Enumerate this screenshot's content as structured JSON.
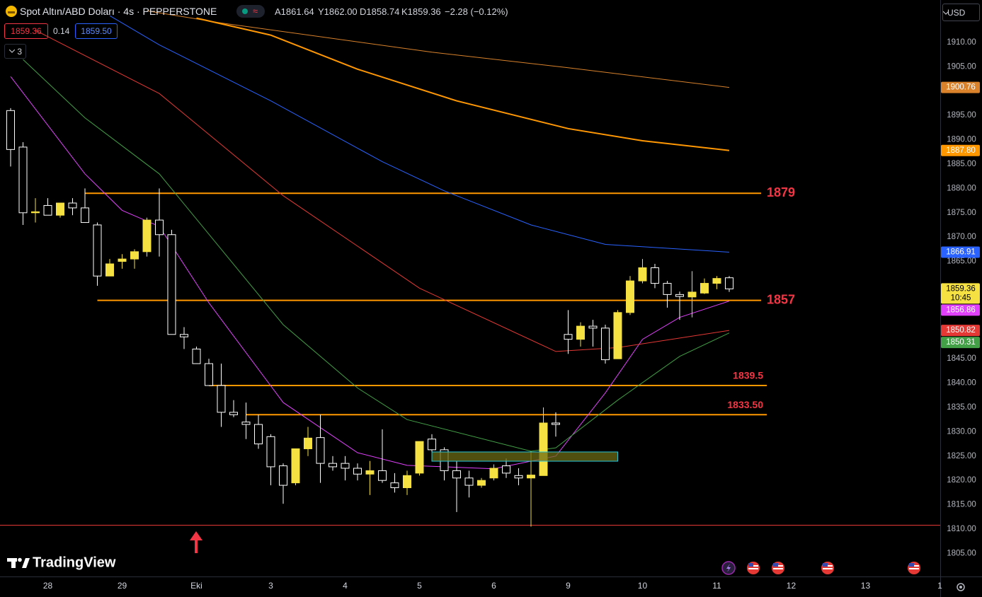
{
  "header": {
    "symbol": "Spot Altın/ABD Doları · 4s · PEPPERSTONE",
    "ohlc": [
      "A1861.64",
      "Y1862.00",
      "D1858.74",
      "K1859.36"
    ],
    "change": "−2.28 (−0.12%)",
    "bid": "1859.36",
    "spread": "0.14",
    "ask": "1859.50",
    "indicators_count": "3",
    "currency": "USD",
    "countdown": "10:45",
    "brand": "TradingView"
  },
  "chart_data": {
    "type": "candlestick",
    "up_color": "#f5e142",
    "down_color": "#ffffff",
    "open": [
      1896,
      1888.5,
      1875,
      1876.5,
      1874.5,
      1877,
      1876,
      1872.5,
      1862,
      1865,
      1865.5,
      1867,
      1873.5,
      1870.5,
      1850,
      1847,
      1844,
      1839.5,
      1834,
      1832,
      1831.5,
      1829,
      1823,
      1819.5,
      1826.5,
      1828.8,
      1823.5,
      1823.5,
      1822.5,
      1821.3,
      1822,
      1819.5,
      1818.5,
      1821.5,
      1828.5,
      1826.3,
      1822,
      1820.5,
      1819,
      1820.5,
      1823,
      1821,
      1820.5,
      1821,
      1831.8,
      1850,
      1849,
      1851.7,
      1851.3,
      1845,
      1854.5,
      1861,
      1863.7,
      1860.5,
      1858.2,
      1857.7,
      1858.5,
      1860.5,
      1861.64
    ],
    "high": [
      1896.5,
      1889.5,
      1878,
      1878,
      1877,
      1878,
      1880,
      1873,
      1865.5,
      1866.5,
      1867.5,
      1874,
      1880,
      1871.5,
      1851.5,
      1847.5,
      1845,
      1844,
      1836.5,
      1836,
      1833.5,
      1829.5,
      1823.5,
      1826.5,
      1831,
      1833.5,
      1825,
      1825,
      1823.5,
      1824,
      1830.5,
      1821.5,
      1822,
      1828,
      1829.5,
      1826.8,
      1824,
      1822,
      1820.5,
      1823.3,
      1824.5,
      1822.5,
      1826,
      1835,
      1834,
      1855,
      1852.5,
      1853,
      1852,
      1855,
      1862,
      1865.5,
      1864.5,
      1861,
      1858.8,
      1863,
      1861.5,
      1862,
      1862
    ],
    "low": [
      1884.5,
      1872.5,
      1873,
      1874.5,
      1874,
      1874.5,
      1873,
      1860,
      1862,
      1863.5,
      1863.5,
      1866,
      1866,
      1850,
      1847,
      1844,
      1839.5,
      1831,
      1833,
      1828.5,
      1826.5,
      1819,
      1815.2,
      1819,
      1825,
      1819.5,
      1822,
      1820,
      1820,
      1817,
      1819.5,
      1817.5,
      1817,
      1821,
      1825,
      1820,
      1813.5,
      1816.5,
      1818.5,
      1820,
      1820.5,
      1819,
      1810.5,
      1821,
      1829,
      1846,
      1847.5,
      1847.5,
      1844,
      1845,
      1854,
      1860.5,
      1859.5,
      1855.5,
      1853,
      1853.5,
      1858.3,
      1859.3,
      1858.74
    ],
    "close": [
      1888,
      1875,
      1875.2,
      1874.5,
      1877,
      1876,
      1873,
      1862,
      1864.5,
      1865.5,
      1867,
      1873.5,
      1870.5,
      1850,
      1849.5,
      1844,
      1839.5,
      1834,
      1833.5,
      1831.5,
      1827.5,
      1822.8,
      1819,
      1826.5,
      1828.7,
      1823.5,
      1822.8,
      1822.5,
      1821.3,
      1822,
      1820,
      1818.5,
      1821,
      1828,
      1826.3,
      1822,
      1820.5,
      1819,
      1820,
      1822.5,
      1821.5,
      1820.5,
      1821.1,
      1831.8,
      1831.5,
      1849,
      1851.7,
      1851.3,
      1844.8,
      1854.5,
      1861,
      1863.7,
      1860.5,
      1858.2,
      1857.8,
      1858.7,
      1860.5,
      1861.5,
      1859.36
    ],
    "xlim": [
      -0.857,
      75.03
    ],
    "ylim": [
      1800.26,
      1918.72
    ],
    "xticks": [
      {
        "value": 3,
        "label": "28"
      },
      {
        "value": 9,
        "label": "29"
      },
      {
        "value": 15,
        "label": "Eki"
      },
      {
        "value": 21,
        "label": "3"
      },
      {
        "value": 27,
        "label": "4"
      },
      {
        "value": 33,
        "label": "5"
      },
      {
        "value": 39,
        "label": "6"
      },
      {
        "value": 45,
        "label": "9"
      },
      {
        "value": 51,
        "label": "10"
      },
      {
        "value": 57,
        "label": "11"
      },
      {
        "value": 63,
        "label": "12"
      },
      {
        "value": 69,
        "label": "13"
      },
      {
        "value": 75,
        "label": "1"
      }
    ],
    "yticks": [
      {
        "value": 1805,
        "label": "1805.00"
      },
      {
        "value": 1810,
        "label": "1810.00"
      },
      {
        "value": 1815,
        "label": "1815.00"
      },
      {
        "value": 1820,
        "label": "1820.00"
      },
      {
        "value": 1825,
        "label": "1825.00"
      },
      {
        "value": 1830,
        "label": "1830.00"
      },
      {
        "value": 1835,
        "label": "1835.00"
      },
      {
        "value": 1840,
        "label": "1840.00"
      },
      {
        "value": 1845,
        "label": "1845.00"
      },
      {
        "value": 1865,
        "label": "1865.00"
      },
      {
        "value": 1870,
        "label": "1870.00"
      },
      {
        "value": 1875,
        "label": "1875.00"
      },
      {
        "value": 1880,
        "label": "1880.00"
      },
      {
        "value": 1885,
        "label": "1885.00"
      },
      {
        "value": 1890,
        "label": "1890.00"
      },
      {
        "value": 1895,
        "label": "1895.00"
      },
      {
        "value": 1905,
        "label": "1905.00"
      },
      {
        "value": 1910,
        "label": "1910.00"
      }
    ],
    "series": [
      {
        "color": "#d9822b",
        "width": 1,
        "x": [
          11,
          17,
          34,
          45,
          58
        ],
        "values": [
          1916.5,
          1914,
          1908,
          1904.8,
          1900.76
        ]
      },
      {
        "color": "#ff9800",
        "width": 2,
        "x": [
          15,
          21,
          28,
          36,
          45,
          51,
          58
        ],
        "values": [
          1915,
          1911.5,
          1904.5,
          1898,
          1892.3,
          1889.8,
          1887.8
        ],
        "value_labels": [
          null,
          null,
          null,
          null,
          null,
          null,
          "1887.80"
        ]
      },
      {
        "color": "#2962ff",
        "width": 1,
        "x": [
          8,
          12,
          21,
          30,
          35,
          42,
          48,
          58
        ],
        "values": [
          1915.5,
          1909.5,
          1898,
          1885.5,
          1879.5,
          1872.5,
          1868.5,
          1866.91
        ]
      },
      {
        "color": "#e0e0e0",
        "width": 0,
        "x": [],
        "values": []
      }
    ],
    "ma": [
      {
        "color": "#e040fb",
        "width": 1,
        "x": [
          0,
          6,
          9,
          12,
          16,
          22,
          28,
          32,
          39,
          44,
          48,
          51,
          54,
          58
        ],
        "values": [
          1903,
          1883,
          1875.5,
          1872.2,
          1856.5,
          1836,
          1825.7,
          1823.1,
          1822.4,
          1825,
          1838,
          1849,
          1853.5,
          1856.86
        ]
      },
      {
        "color": "#e53935",
        "width": 1,
        "x": [
          2,
          12,
          22,
          33,
          44,
          49,
          58
        ],
        "values": [
          1912.5,
          1899.5,
          1878.5,
          1859.5,
          1846.5,
          1847.3,
          1850.82
        ]
      },
      {
        "color": "#43a047",
        "width": 1,
        "x": [
          1,
          6,
          12,
          22,
          28,
          32,
          42,
          44,
          49,
          54,
          58
        ],
        "values": [
          1906.5,
          1894.5,
          1883,
          1852,
          1839,
          1832.5,
          1826,
          1826.7,
          1836.5,
          1845.5,
          1850.31
        ]
      }
    ],
    "hlines": [
      {
        "value": 1879,
        "label": "1879",
        "from": 6,
        "color": "#ff9800",
        "label_position": "right"
      },
      {
        "value": 1857,
        "label": "1857",
        "from": 7,
        "color": "#ff9800",
        "label_position": "right"
      },
      {
        "value": 1839.5,
        "label": "1839.5",
        "from": 16,
        "color": "#ff9800",
        "label_position": "above"
      },
      {
        "value": 1833.5,
        "label": "1833.50",
        "from": 19,
        "color": "#ff9800",
        "label_position": "above"
      },
      {
        "value": 1810.8,
        "color": "#e53935"
      }
    ],
    "zones": [
      {
        "x": [
          34,
          49
        ],
        "y": [
          1823.95,
          1825.85
        ],
        "fill": "#6b6a14",
        "border": "#26c6da"
      }
    ]
  }
}
